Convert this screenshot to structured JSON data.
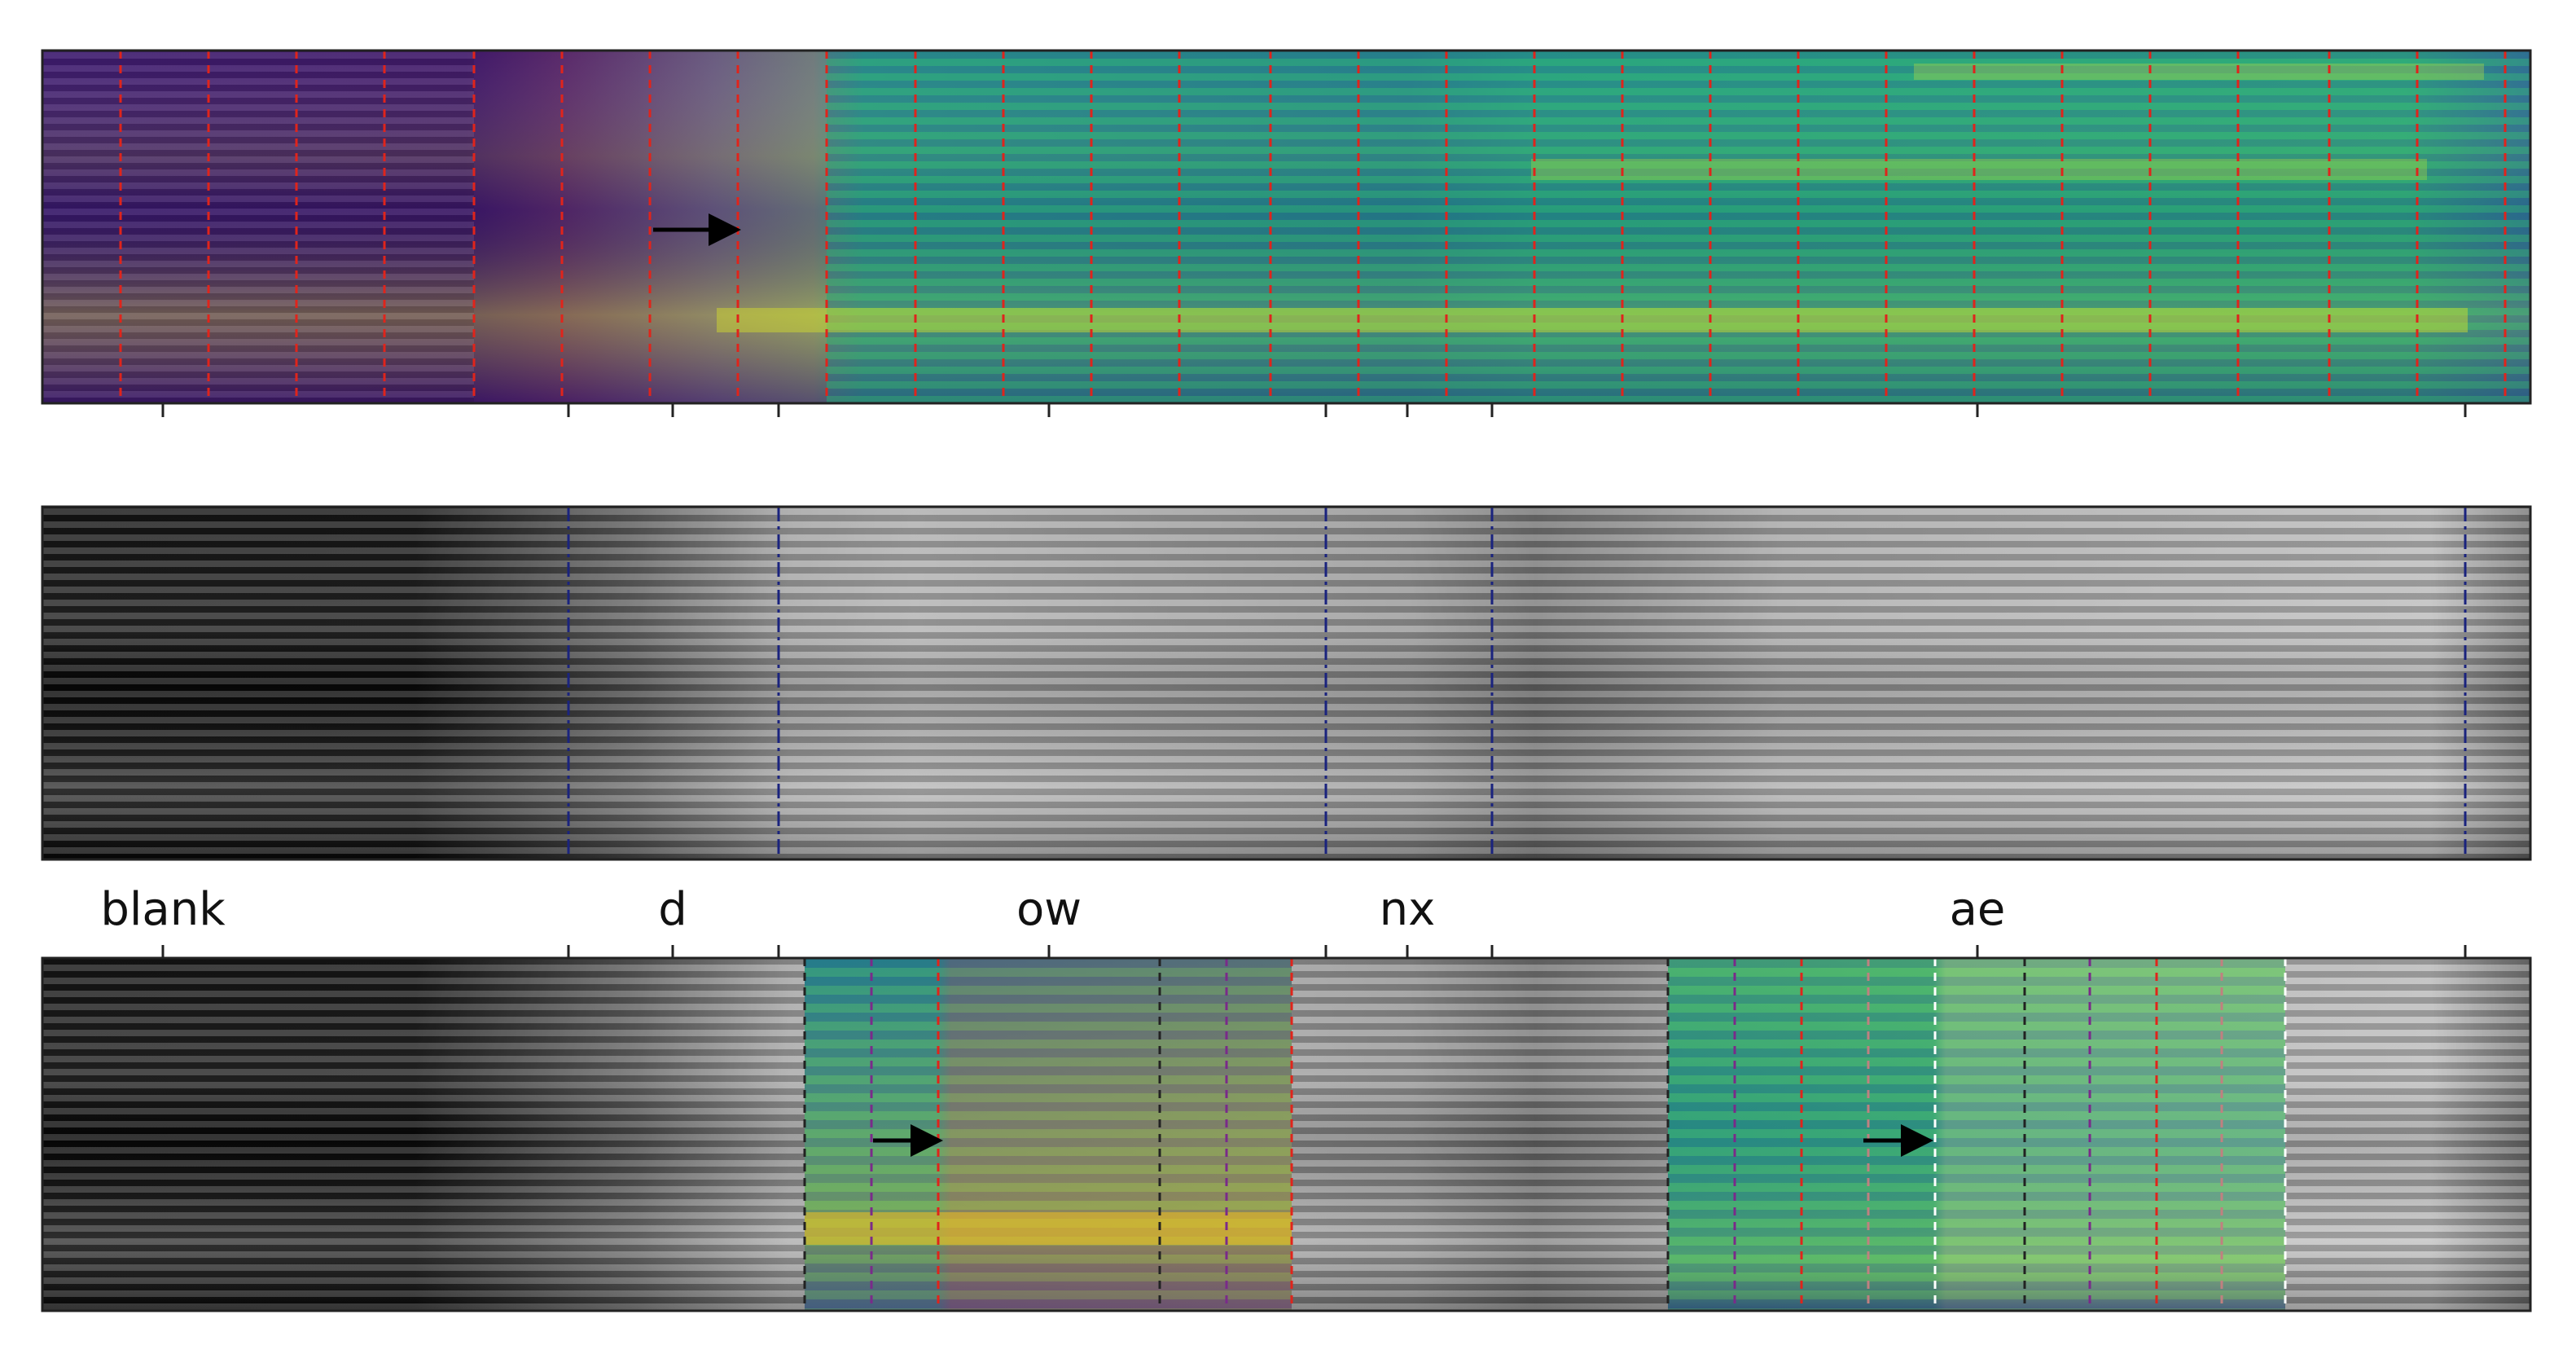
{
  "figure": {
    "description_free": true,
    "panels": [
      {
        "id": "top",
        "colormap": "viridis-with-purple-prefix",
        "frame_lines": "red-dashed"
      },
      {
        "id": "middle",
        "colormap": "grayscale",
        "boundary_lines": "navy-dashdot"
      },
      {
        "id": "bottom",
        "colormap": "grayscale-with-viridis-overlays",
        "frame_lines": "mixed-dashed"
      }
    ]
  },
  "phonemes": {
    "labels": [
      "blank",
      "d",
      "ow",
      "nx",
      "ae"
    ]
  },
  "colors": {
    "frame_red": "#e0241b",
    "boundary_navy": "#1a237e",
    "arrow": "#000000",
    "axis": "#222222"
  }
}
